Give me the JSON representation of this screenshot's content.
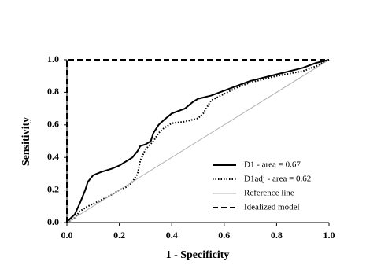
{
  "chart_data": {
    "type": "line",
    "x_label": "1 - Specificity",
    "y_label": "Sensitivity",
    "xlim": [
      0,
      1
    ],
    "ylim": [
      0,
      1
    ],
    "xticks": [
      {
        "value": 0,
        "label": "0.0"
      },
      0.2,
      0.4,
      0.6,
      0.8,
      {
        "value": 1,
        "label": "1.0"
      }
    ],
    "yticks": [
      {
        "value": 0,
        "label": "0.0"
      },
      0.2,
      0.4,
      0.6,
      0.8,
      {
        "value": 1,
        "label": "1.0"
      }
    ],
    "grid": false,
    "legend": "lower right",
    "series": [
      {
        "name": "D1 - area = 0.67",
        "color": "#000000",
        "style": "solid",
        "x": [
          0,
          0.01,
          0.03,
          0.05,
          0.07,
          0.08,
          0.1,
          0.13,
          0.17,
          0.2,
          0.23,
          0.25,
          0.27,
          0.28,
          0.3,
          0.32,
          0.33,
          0.35,
          0.37,
          0.4,
          0.45,
          0.48,
          0.5,
          0.55,
          0.6,
          0.65,
          0.7,
          0.8,
          0.9,
          0.95,
          1
        ],
        "values": [
          0,
          0.02,
          0.05,
          0.12,
          0.2,
          0.25,
          0.29,
          0.31,
          0.33,
          0.35,
          0.38,
          0.4,
          0.44,
          0.47,
          0.48,
          0.5,
          0.55,
          0.6,
          0.63,
          0.67,
          0.7,
          0.74,
          0.76,
          0.78,
          0.81,
          0.84,
          0.87,
          0.91,
          0.95,
          0.98,
          1
        ]
      },
      {
        "name": "D1adj - area = 0.62",
        "color": "#000000",
        "style": "dotted",
        "x": [
          0,
          0.03,
          0.05,
          0.08,
          0.12,
          0.17,
          0.2,
          0.23,
          0.25,
          0.27,
          0.28,
          0.3,
          0.33,
          0.35,
          0.37,
          0.4,
          0.45,
          0.5,
          0.52,
          0.55,
          0.6,
          0.65,
          0.7,
          0.8,
          0.9,
          0.95,
          1
        ],
        "values": [
          0,
          0.03,
          0.07,
          0.1,
          0.13,
          0.17,
          0.2,
          0.22,
          0.25,
          0.3,
          0.38,
          0.45,
          0.5,
          0.55,
          0.58,
          0.61,
          0.62,
          0.64,
          0.67,
          0.75,
          0.79,
          0.83,
          0.86,
          0.9,
          0.93,
          0.96,
          1
        ]
      },
      {
        "name": "Reference line",
        "color": "#b0b0b0",
        "style": "solid",
        "x": [
          0,
          1
        ],
        "values": [
          0,
          1
        ]
      },
      {
        "name": "Idealized model",
        "color": "#000000",
        "style": "dashed",
        "x": [
          0,
          0,
          1
        ],
        "values": [
          0,
          1,
          1
        ]
      }
    ]
  }
}
